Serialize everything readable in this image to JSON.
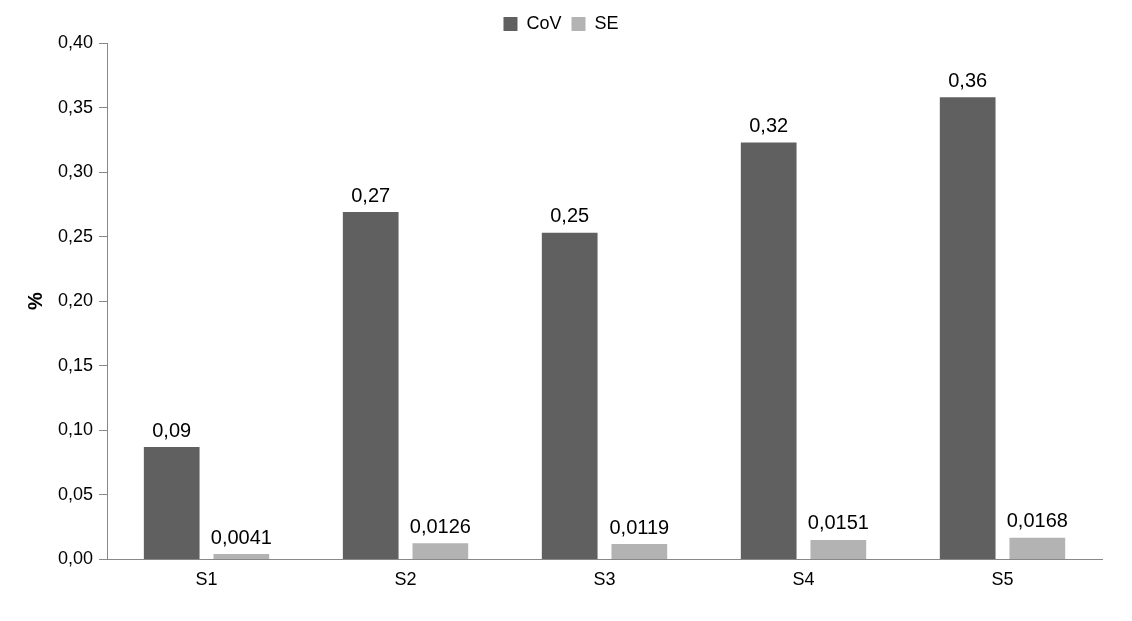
{
  "chart_data": {
    "type": "bar",
    "ylabel": "%",
    "categories": [
      "S1",
      "S2",
      "S3",
      "S4",
      "S5"
    ],
    "series": [
      {
        "name": "CoV",
        "color": "#606060",
        "values": [
          0.087,
          0.269,
          0.253,
          0.323,
          0.358
        ],
        "value_labels": [
          "0,09",
          "0,27",
          "0,25",
          "0,32",
          "0,36"
        ]
      },
      {
        "name": "SE",
        "color": "#b3b3b3",
        "values": [
          0.0041,
          0.0126,
          0.0119,
          0.0151,
          0.0168
        ],
        "value_labels": [
          "0,0041",
          "0,0126",
          "0,0119",
          "0,0151",
          "0,0168"
        ]
      }
    ],
    "ylim": [
      0,
      0.4
    ],
    "yticks": [
      {
        "value": 0,
        "label": "0,00"
      },
      {
        "value": 0.05,
        "label": "0,05"
      },
      {
        "value": 0.1,
        "label": "0,10"
      },
      {
        "value": 0.15,
        "label": "0,15"
      },
      {
        "value": 0.2,
        "label": "0,20"
      },
      {
        "value": 0.25,
        "label": "0,25"
      },
      {
        "value": 0.3,
        "label": "0,30"
      },
      {
        "value": 0.35,
        "label": "0,35"
      },
      {
        "value": 0.4,
        "label": "0,40"
      }
    ],
    "grid": false,
    "legend": "top"
  }
}
